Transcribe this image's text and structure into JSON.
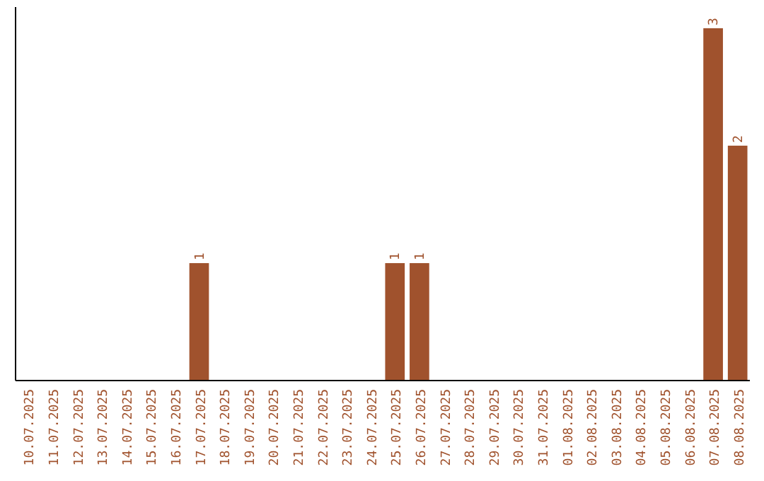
{
  "chart_data": {
    "type": "bar",
    "categories": [
      "10.07.2025",
      "11.07.2025",
      "12.07.2025",
      "13.07.2025",
      "14.07.2025",
      "15.07.2025",
      "16.07.2025",
      "17.07.2025",
      "18.07.2025",
      "19.07.2025",
      "20.07.2025",
      "21.07.2025",
      "22.07.2025",
      "23.07.2025",
      "24.07.2025",
      "25.07.2025",
      "26.07.2025",
      "27.07.2025",
      "28.07.2025",
      "29.07.2025",
      "30.07.2025",
      "31.07.2025",
      "01.08.2025",
      "02.08.2025",
      "03.08.2025",
      "04.08.2025",
      "05.08.2025",
      "06.08.2025",
      "07.08.2025",
      "08.08.2025"
    ],
    "values": [
      0,
      0,
      0,
      0,
      0,
      0,
      0,
      1,
      0,
      0,
      0,
      0,
      0,
      0,
      0,
      1,
      1,
      0,
      0,
      0,
      0,
      0,
      0,
      0,
      0,
      0,
      0,
      0,
      3,
      2
    ],
    "value_labels": [
      null,
      null,
      null,
      null,
      null,
      null,
      null,
      "1",
      null,
      null,
      null,
      null,
      null,
      null,
      null,
      "1",
      "1",
      null,
      null,
      null,
      null,
      null,
      null,
      null,
      null,
      null,
      null,
      null,
      "3",
      "2"
    ],
    "color": "#a0522d"
  }
}
